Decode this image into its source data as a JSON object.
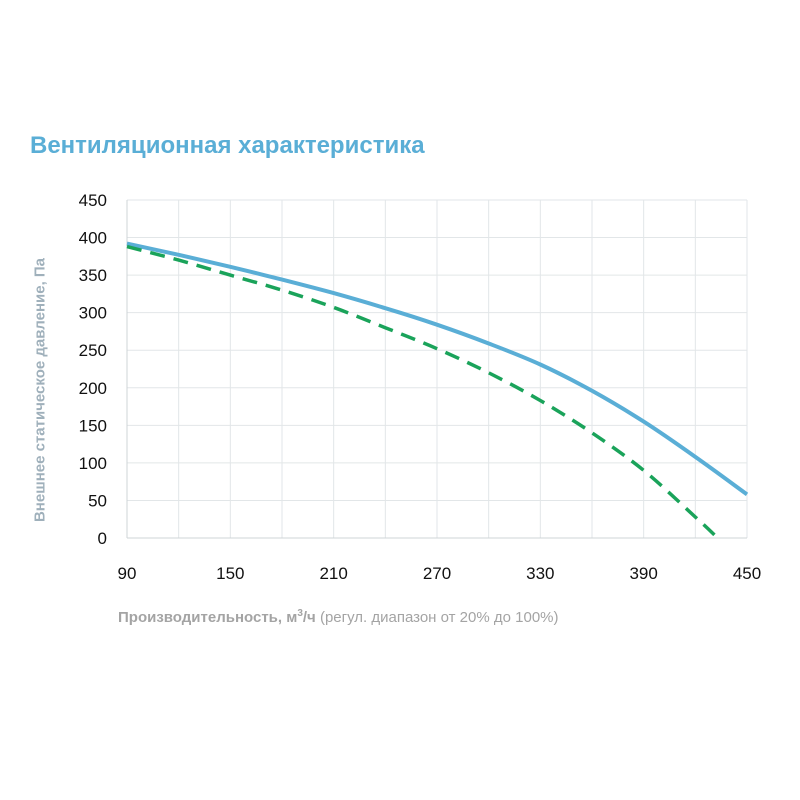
{
  "chart_data": {
    "type": "line",
    "title": "Вентиляционная характеристика",
    "ylabel": "Внешнее статическое давление, Па",
    "xlabel": {
      "main": "Производительность, м",
      "superscript": "3",
      "after_sup": "/ч",
      "note": " (регул. диапазон от 20% до 100%)"
    },
    "xlim": [
      90,
      450
    ],
    "ylim": [
      0,
      450
    ],
    "x_ticks": [
      90,
      150,
      210,
      270,
      330,
      390,
      450
    ],
    "y_ticks": [
      0,
      50,
      100,
      150,
      200,
      250,
      300,
      350,
      400,
      450
    ],
    "x_grid_step": 30,
    "grid": true,
    "series": [
      {
        "style": "solid",
        "color": "#5aaed6",
        "x": [
          90,
          120,
          150,
          180,
          210,
          240,
          270,
          300,
          330,
          360,
          390,
          420,
          450
        ],
        "y": [
          392,
          377,
          361,
          344,
          326,
          306,
          284,
          259,
          231,
          196,
          155,
          108,
          58
        ]
      },
      {
        "style": "dashed",
        "color": "#1aa35a",
        "x": [
          90,
          120,
          150,
          180,
          210,
          240,
          270,
          300,
          330,
          360,
          390,
          420,
          433
        ],
        "y": [
          388,
          370,
          350,
          330,
          307,
          280,
          252,
          220,
          183,
          140,
          90,
          28,
          0
        ]
      }
    ]
  }
}
